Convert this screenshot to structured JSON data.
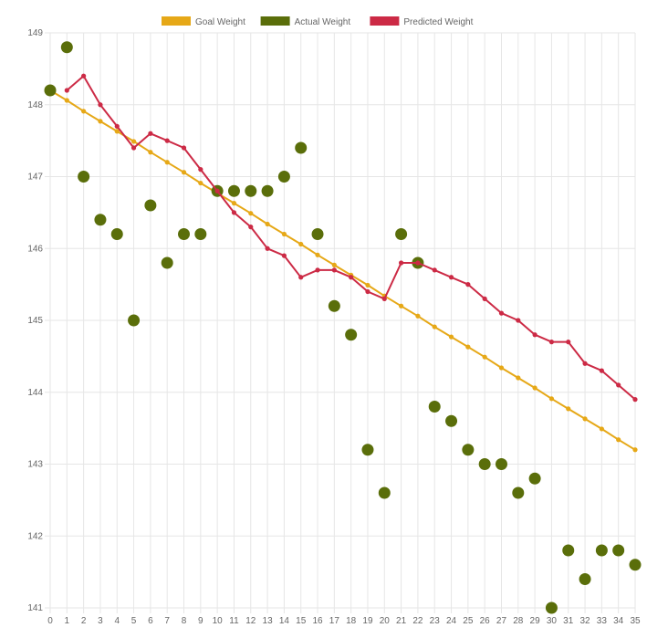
{
  "chart_data": {
    "type": "line",
    "title": "",
    "xlabel": "",
    "ylabel": "",
    "x": [
      0,
      1,
      2,
      3,
      4,
      5,
      6,
      7,
      8,
      9,
      10,
      11,
      12,
      13,
      14,
      15,
      16,
      17,
      18,
      19,
      20,
      21,
      22,
      23,
      24,
      25,
      26,
      27,
      28,
      29,
      30,
      31,
      32,
      33,
      34,
      35
    ],
    "xlim": [
      0,
      35
    ],
    "ylim": [
      141,
      149
    ],
    "yticks": [
      141,
      142,
      143,
      144,
      145,
      146,
      147,
      148,
      149
    ],
    "grid": true,
    "legend_position": "top",
    "series": [
      {
        "name": "Goal Weight",
        "style": "line",
        "color": "#e6a817",
        "values": [
          148.2,
          148.06,
          147.91,
          147.77,
          147.63,
          147.49,
          147.34,
          147.2,
          147.06,
          146.91,
          146.77,
          146.63,
          146.49,
          146.34,
          146.2,
          146.06,
          145.91,
          145.77,
          145.63,
          145.49,
          145.34,
          145.2,
          145.06,
          144.91,
          144.77,
          144.63,
          144.49,
          144.34,
          144.2,
          144.06,
          143.91,
          143.77,
          143.63,
          143.49,
          143.34,
          143.2
        ]
      },
      {
        "name": "Actual Weight",
        "style": "scatter",
        "color": "#5a6e0a",
        "values": [
          148.2,
          148.8,
          147.0,
          146.4,
          146.2,
          145.0,
          146.6,
          145.8,
          146.2,
          146.2,
          146.8,
          146.8,
          146.8,
          146.8,
          147.0,
          147.4,
          146.2,
          145.2,
          144.8,
          143.2,
          142.6,
          146.2,
          145.8,
          143.8,
          143.6,
          143.2,
          143.0,
          143.0,
          142.6,
          142.8,
          141.0,
          141.8,
          141.4,
          141.8,
          141.8,
          141.6
        ]
      },
      {
        "name": "Predicted Weight",
        "style": "line",
        "color": "#cc2a45",
        "values": [
          null,
          148.2,
          148.4,
          148.0,
          147.7,
          147.4,
          147.6,
          147.5,
          147.4,
          147.1,
          146.8,
          146.5,
          146.3,
          146.0,
          145.9,
          145.6,
          145.7,
          145.7,
          145.6,
          145.4,
          145.3,
          145.8,
          145.8,
          145.7,
          145.6,
          145.5,
          145.3,
          145.1,
          145.0,
          144.8,
          144.7,
          144.7,
          144.4,
          144.3,
          144.1,
          143.9
        ]
      }
    ]
  }
}
